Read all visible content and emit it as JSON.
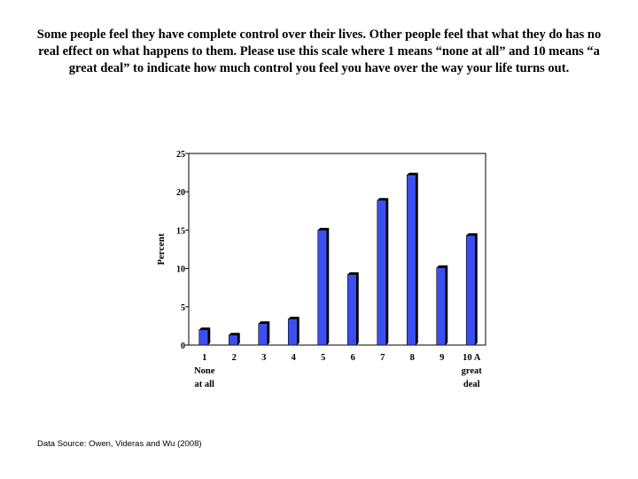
{
  "question": "Some people feel they have complete control over their lives. Other people feel that what they do has no real effect on what happens to them. Please use this scale where 1 means “none at all” and 10 means “a great deal” to indicate how much control you feel you have over the way your life turns out.",
  "source": "Data Source: Owen, Videras and Wu (2008)",
  "chart_data": {
    "type": "bar",
    "title": "",
    "xlabel": "",
    "ylabel": "Percent",
    "categories": [
      [
        "1",
        "None",
        "at all"
      ],
      [
        "2"
      ],
      [
        "3"
      ],
      [
        "4"
      ],
      [
        "5"
      ],
      [
        "6"
      ],
      [
        "7"
      ],
      [
        "8"
      ],
      [
        "9"
      ],
      [
        "10 A",
        "great",
        "deal"
      ]
    ],
    "values": [
      2.0,
      1.3,
      2.8,
      3.4,
      15.0,
      9.2,
      18.9,
      22.2,
      10.1,
      14.3
    ],
    "ylim": [
      0,
      25
    ],
    "yticks": [
      0,
      5,
      10,
      15,
      20,
      25
    ],
    "grid": false,
    "bar_color": "#3b4ff0",
    "bar_shadow_color": "#000000"
  }
}
